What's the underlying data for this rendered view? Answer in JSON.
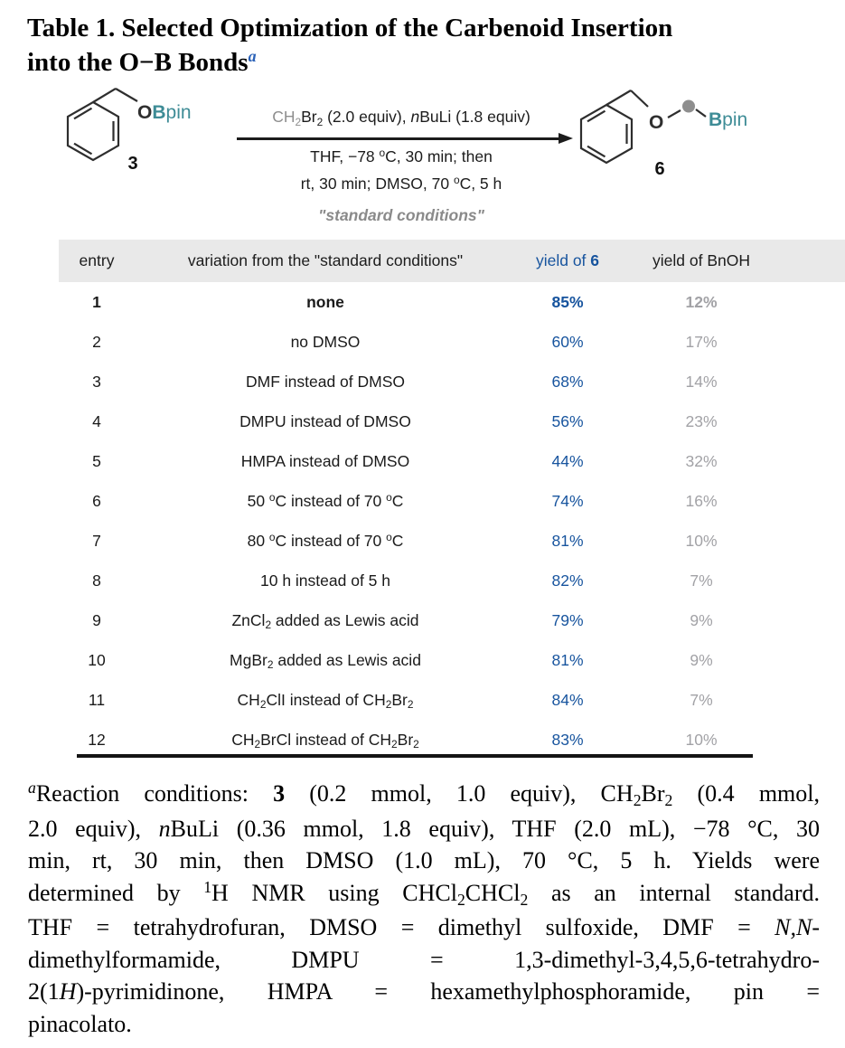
{
  "title": {
    "line1": "Table 1. Selected Optimization of the Carbenoid Insertion",
    "line2": "into the O−B Bonds",
    "footnote_marker": "a",
    "accent_color": "#2b62b8"
  },
  "scheme": {
    "reactant_label": "3",
    "product_label": "6",
    "reactant_obpin": [
      {
        "t": "O",
        "s": "b dk"
      },
      {
        "t": "B",
        "s": "b tl"
      },
      {
        "t": "pin",
        "s": "tl"
      }
    ],
    "product_o": [
      {
        "t": "O",
        "s": "b dk"
      }
    ],
    "product_bpin": [
      {
        "t": "B",
        "s": "b tl"
      },
      {
        "t": "pin",
        "s": "tl"
      }
    ],
    "arrow_line1": [
      {
        "t": "CH",
        "s": "gy"
      },
      {
        "t": "2",
        "s": "sub gy"
      },
      {
        "t": "Br"
      },
      {
        "t": "2",
        "s": "sub"
      },
      {
        "t": " (2.0 equiv), "
      },
      {
        "t": "n",
        "s": "i"
      },
      {
        "t": "BuLi (1.8 equiv)"
      }
    ],
    "arrow_line2": [
      {
        "t": "THF, −78 "
      },
      {
        "t": "o",
        "s": "sup"
      },
      {
        "t": "C, 30 min; then"
      }
    ],
    "arrow_line3": [
      {
        "t": "rt, 30 min; DMSO, 70 "
      },
      {
        "t": "o",
        "s": "sup"
      },
      {
        "t": "C, 5 h"
      }
    ],
    "standard_conditions": "\"standard conditions\"",
    "carbenoid_color": "#8e8e8e",
    "bpin_color": "#3e8c96"
  },
  "table": {
    "headers": {
      "entry": "entry",
      "variation": "variation from the \"standard conditions\"",
      "yield6": [
        {
          "t": "yield of "
        },
        {
          "t": "6",
          "s": "b"
        }
      ],
      "bnoh": "yield of BnOH"
    },
    "yield_color": "#17549e",
    "bnoh_color": "#a2a2a6",
    "rows": [
      {
        "entry": "1",
        "variation": [
          {
            "t": "none",
            "s": "b"
          }
        ],
        "yield6": "85%",
        "bnoh": "12%",
        "bold": true
      },
      {
        "entry": "2",
        "variation": [
          {
            "t": "no DMSO"
          }
        ],
        "yield6": "60%",
        "bnoh": "17%"
      },
      {
        "entry": "3",
        "variation": [
          {
            "t": "DMF instead of DMSO"
          }
        ],
        "yield6": "68%",
        "bnoh": "14%"
      },
      {
        "entry": "4",
        "variation": [
          {
            "t": "DMPU instead of DMSO"
          }
        ],
        "yield6": "56%",
        "bnoh": "23%"
      },
      {
        "entry": "5",
        "variation": [
          {
            "t": "HMPA instead of DMSO"
          }
        ],
        "yield6": "44%",
        "bnoh": "32%"
      },
      {
        "entry": "6",
        "variation": [
          {
            "t": "50 "
          },
          {
            "t": "o",
            "s": "sup"
          },
          {
            "t": "C instead of 70 "
          },
          {
            "t": "o",
            "s": "sup"
          },
          {
            "t": "C"
          }
        ],
        "yield6": "74%",
        "bnoh": "16%"
      },
      {
        "entry": "7",
        "variation": [
          {
            "t": "80 "
          },
          {
            "t": "o",
            "s": "sup"
          },
          {
            "t": "C instead of 70 "
          },
          {
            "t": "o",
            "s": "sup"
          },
          {
            "t": "C"
          }
        ],
        "yield6": "81%",
        "bnoh": "10%"
      },
      {
        "entry": "8",
        "variation": [
          {
            "t": "10 h instead of 5 h"
          }
        ],
        "yield6": "82%",
        "bnoh": "7%"
      },
      {
        "entry": "9",
        "variation": [
          {
            "t": "ZnCl"
          },
          {
            "t": "2",
            "s": "sub"
          },
          {
            "t": " added as Lewis acid"
          }
        ],
        "yield6": "79%",
        "bnoh": "9%"
      },
      {
        "entry": "10",
        "variation": [
          {
            "t": "MgBr"
          },
          {
            "t": "2",
            "s": "sub"
          },
          {
            "t": " added as Lewis acid"
          }
        ],
        "yield6": "81%",
        "bnoh": "9%"
      },
      {
        "entry": "11",
        "variation": [
          {
            "t": "CH"
          },
          {
            "t": "2",
            "s": "sub"
          },
          {
            "t": "ClI instead of CH"
          },
          {
            "t": "2",
            "s": "sub"
          },
          {
            "t": "Br"
          },
          {
            "t": "2",
            "s": "sub"
          }
        ],
        "yield6": "84%",
        "bnoh": "7%"
      },
      {
        "entry": "12",
        "variation": [
          {
            "t": "CH"
          },
          {
            "t": "2",
            "s": "sub"
          },
          {
            "t": "BrCl instead of CH"
          },
          {
            "t": "2",
            "s": "sub"
          },
          {
            "t": "Br"
          },
          {
            "t": "2",
            "s": "sub"
          }
        ],
        "yield6": "83%",
        "bnoh": "10%"
      }
    ]
  },
  "footnote": {
    "lines": [
      [
        {
          "t": "a",
          "s": "sup i"
        },
        {
          "t": "Reaction conditions: "
        },
        {
          "t": "3",
          "s": "b"
        },
        {
          "t": " (0.2 mmol, 1.0 equiv), CH"
        },
        {
          "t": "2",
          "s": "sub"
        },
        {
          "t": "Br"
        },
        {
          "t": "2",
          "s": "sub"
        },
        {
          "t": " (0.4 mmol,"
        }
      ],
      [
        {
          "t": "2.0 equiv), "
        },
        {
          "t": "n",
          "s": "i"
        },
        {
          "t": "BuLi (0.36 mmol, 1.8 equiv), THF (2.0 mL), −78 °C, 30"
        }
      ],
      [
        {
          "t": "min, rt, 30 min, then DMSO (1.0 mL), 70 °C, 5 h. Yields were"
        }
      ],
      [
        {
          "t": "determined by "
        },
        {
          "t": "1",
          "s": "sup"
        },
        {
          "t": "H NMR using CHCl"
        },
        {
          "t": "2",
          "s": "sub"
        },
        {
          "t": "CHCl"
        },
        {
          "t": "2",
          "s": "sub"
        },
        {
          "t": " as an internal standard."
        }
      ],
      [
        {
          "t": "THF = tetrahydrofuran, DMSO = dimethyl sulfoxide, DMF = "
        },
        {
          "t": "N,N",
          "s": "i"
        },
        {
          "t": "-"
        }
      ],
      [
        {
          "t": "dimethylformamide, DMPU = 1,3-dimethyl-3,4,5,6-tetrahydro-"
        }
      ],
      [
        {
          "t": "2(1"
        },
        {
          "t": "H",
          "s": "i"
        },
        {
          "t": ")-pyrimidinone, HMPA = hexamethylphosphoramide, pin ="
        }
      ],
      [
        {
          "t": "pinacolato."
        }
      ]
    ]
  }
}
